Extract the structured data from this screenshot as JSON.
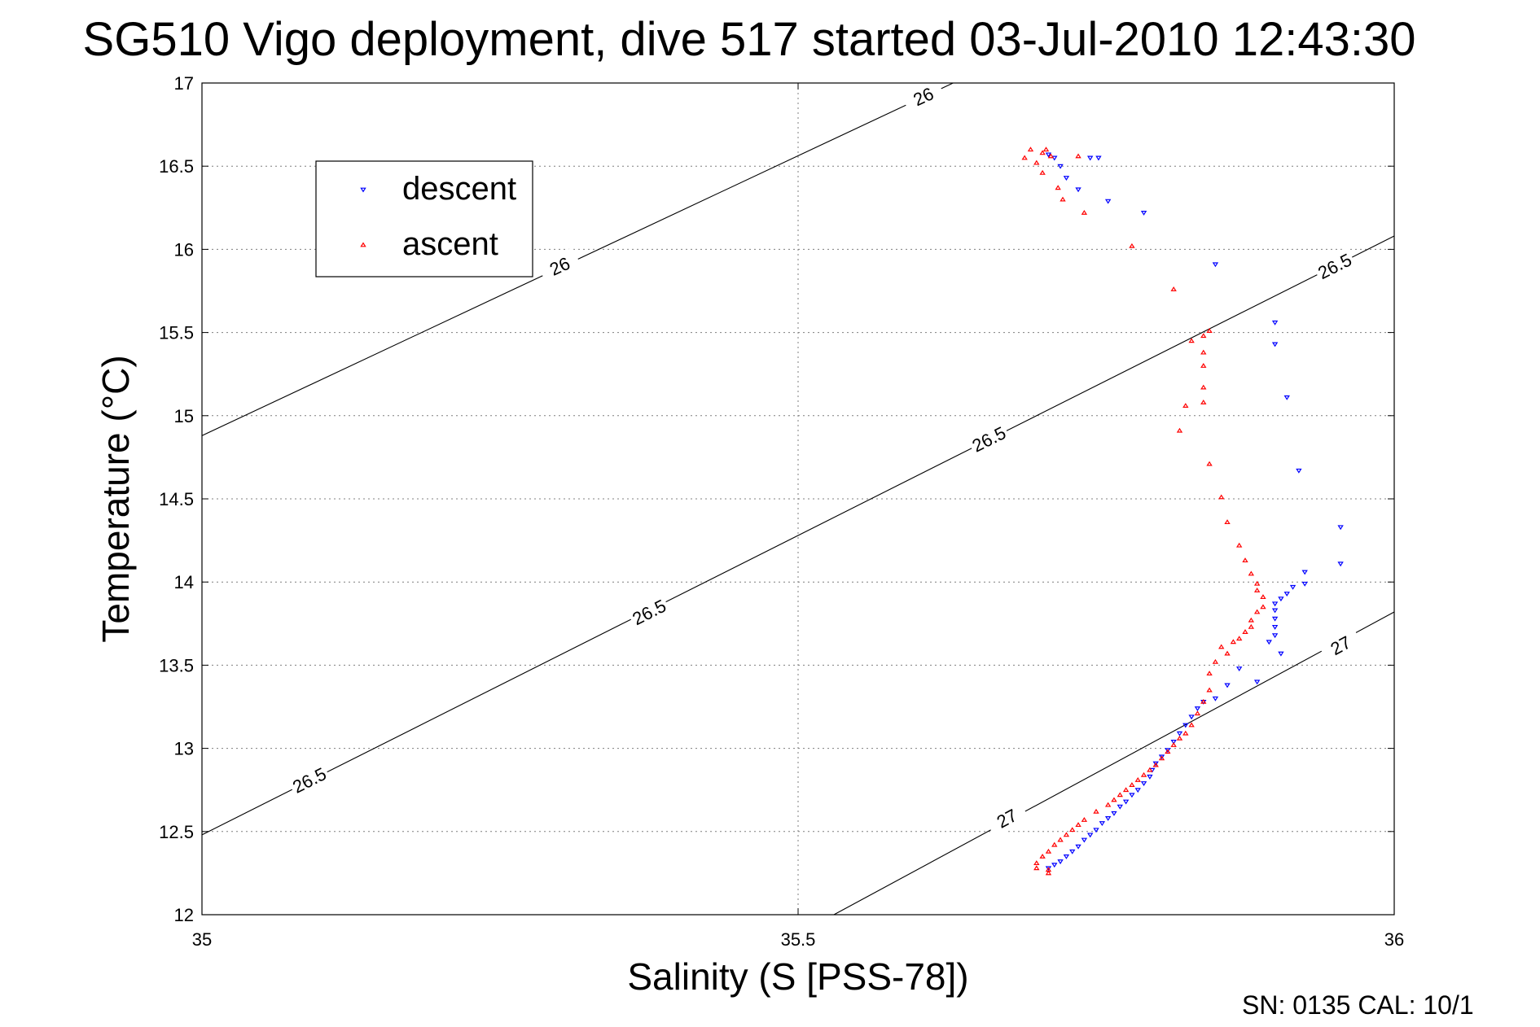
{
  "chart_data": {
    "type": "scatter",
    "title": "SG510 Vigo deployment, dive 517 started 03-Jul-2010 12:43:30",
    "xlabel": "Salinity (S [PSS-78])",
    "ylabel": "Temperature (°C)",
    "xlim": [
      35,
      36
    ],
    "ylim": [
      12,
      17
    ],
    "xticks": [
      "35",
      "35.5",
      "36"
    ],
    "yticks": [
      "12",
      "12.5",
      "13",
      "13.5",
      "14",
      "14.5",
      "15",
      "15.5",
      "16",
      "16.5",
      "17"
    ],
    "grid": true,
    "legend_position": "top-left",
    "footer": "SN: 0135  CAL: 10/1",
    "density_contours": [
      {
        "value": "26",
        "line": [
          [
            35,
            14.88
          ],
          [
            35.63,
            17.0
          ]
        ],
        "labels": [
          {
            "text": "26",
            "x": 35.3,
            "y": 15.9
          },
          {
            "text": "26",
            "x": 35.605,
            "y": 16.92
          }
        ]
      },
      {
        "value": "26.5",
        "line": [
          [
            35,
            12.48
          ],
          [
            36,
            16.08
          ]
        ],
        "labels": [
          {
            "text": "26.5",
            "x": 35.09,
            "y": 12.81
          },
          {
            "text": "26.5",
            "x": 35.375,
            "y": 13.82
          },
          {
            "text": "26.5",
            "x": 35.66,
            "y": 14.86
          },
          {
            "text": "26.5",
            "x": 35.95,
            "y": 15.9
          }
        ]
      },
      {
        "value": "27",
        "line": [
          [
            35.53,
            12.0
          ],
          [
            36,
            13.82
          ]
        ],
        "labels": [
          {
            "text": "27",
            "x": 35.675,
            "y": 12.58
          },
          {
            "text": "27",
            "x": 35.955,
            "y": 13.62
          }
        ]
      }
    ],
    "series": [
      {
        "name": "descent",
        "color": "#0000ff",
        "marker": "triangle-down",
        "points": [
          [
            35.71,
            16.57
          ],
          [
            35.715,
            16.55
          ],
          [
            35.72,
            16.5
          ],
          [
            35.725,
            16.43
          ],
          [
            35.735,
            16.36
          ],
          [
            35.745,
            16.55
          ],
          [
            35.752,
            16.55
          ],
          [
            35.76,
            16.29
          ],
          [
            35.79,
            16.22
          ],
          [
            35.85,
            15.91
          ],
          [
            35.9,
            15.56
          ],
          [
            35.9,
            15.43
          ],
          [
            35.91,
            15.11
          ],
          [
            35.92,
            14.67
          ],
          [
            35.955,
            14.33
          ],
          [
            35.955,
            14.11
          ],
          [
            35.925,
            14.06
          ],
          [
            35.925,
            13.99
          ],
          [
            35.915,
            13.97
          ],
          [
            35.91,
            13.93
          ],
          [
            35.905,
            13.9
          ],
          [
            35.9,
            13.87
          ],
          [
            35.9,
            13.83
          ],
          [
            35.9,
            13.78
          ],
          [
            35.9,
            13.73
          ],
          [
            35.9,
            13.68
          ],
          [
            35.895,
            13.64
          ],
          [
            35.905,
            13.57
          ],
          [
            35.87,
            13.48
          ],
          [
            35.885,
            13.4
          ],
          [
            35.86,
            13.38
          ],
          [
            35.85,
            13.3
          ],
          [
            35.84,
            13.28
          ],
          [
            35.835,
            13.24
          ],
          [
            35.83,
            13.19
          ],
          [
            35.825,
            13.14
          ],
          [
            35.82,
            13.09
          ],
          [
            35.815,
            13.04
          ],
          [
            35.81,
            12.99
          ],
          [
            35.805,
            12.95
          ],
          [
            35.8,
            12.91
          ],
          [
            35.797,
            12.87
          ],
          [
            35.795,
            12.83
          ],
          [
            35.79,
            12.79
          ],
          [
            35.785,
            12.75
          ],
          [
            35.78,
            12.72
          ],
          [
            35.775,
            12.68
          ],
          [
            35.77,
            12.65
          ],
          [
            35.765,
            12.61
          ],
          [
            35.76,
            12.58
          ],
          [
            35.755,
            12.55
          ],
          [
            35.75,
            12.51
          ],
          [
            35.745,
            12.48
          ],
          [
            35.74,
            12.45
          ],
          [
            35.735,
            12.41
          ],
          [
            35.73,
            12.38
          ],
          [
            35.725,
            12.35
          ],
          [
            35.72,
            12.32
          ],
          [
            35.715,
            12.3
          ],
          [
            35.71,
            12.28
          ]
        ]
      },
      {
        "name": "ascent",
        "color": "#ff0000",
        "marker": "triangle-up",
        "points": [
          [
            35.69,
            16.55
          ],
          [
            35.695,
            16.6
          ],
          [
            35.7,
            16.52
          ],
          [
            35.705,
            16.46
          ],
          [
            35.705,
            16.58
          ],
          [
            35.708,
            16.6
          ],
          [
            35.712,
            16.56
          ],
          [
            35.718,
            16.37
          ],
          [
            35.722,
            16.3
          ],
          [
            35.735,
            16.56
          ],
          [
            35.74,
            16.22
          ],
          [
            35.78,
            16.02
          ],
          [
            35.815,
            15.76
          ],
          [
            35.83,
            15.45
          ],
          [
            35.84,
            15.48
          ],
          [
            35.845,
            15.51
          ],
          [
            35.84,
            15.38
          ],
          [
            35.84,
            15.3
          ],
          [
            35.84,
            15.17
          ],
          [
            35.825,
            15.06
          ],
          [
            35.84,
            15.08
          ],
          [
            35.82,
            14.91
          ],
          [
            35.845,
            14.71
          ],
          [
            35.855,
            14.51
          ],
          [
            35.86,
            14.36
          ],
          [
            35.87,
            14.22
          ],
          [
            35.875,
            14.13
          ],
          [
            35.88,
            14.05
          ],
          [
            35.885,
            13.99
          ],
          [
            35.885,
            13.95
          ],
          [
            35.89,
            13.91
          ],
          [
            35.89,
            13.85
          ],
          [
            35.885,
            13.82
          ],
          [
            35.88,
            13.77
          ],
          [
            35.88,
            13.73
          ],
          [
            35.875,
            13.7
          ],
          [
            35.87,
            13.66
          ],
          [
            35.865,
            13.64
          ],
          [
            35.855,
            13.61
          ],
          [
            35.86,
            13.57
          ],
          [
            35.85,
            13.52
          ],
          [
            35.845,
            13.45
          ],
          [
            35.845,
            13.35
          ],
          [
            35.84,
            13.28
          ],
          [
            35.835,
            13.21
          ],
          [
            35.83,
            13.14
          ],
          [
            35.825,
            13.09
          ],
          [
            35.82,
            13.06
          ],
          [
            35.815,
            13.02
          ],
          [
            35.81,
            12.98
          ],
          [
            35.805,
            12.94
          ],
          [
            35.8,
            12.9
          ],
          [
            35.795,
            12.87
          ],
          [
            35.79,
            12.84
          ],
          [
            35.785,
            12.81
          ],
          [
            35.78,
            12.78
          ],
          [
            35.775,
            12.75
          ],
          [
            35.77,
            12.72
          ],
          [
            35.765,
            12.69
          ],
          [
            35.76,
            12.66
          ],
          [
            35.75,
            12.62
          ],
          [
            35.74,
            12.57
          ],
          [
            35.735,
            12.54
          ],
          [
            35.73,
            12.51
          ],
          [
            35.725,
            12.48
          ],
          [
            35.72,
            12.45
          ],
          [
            35.715,
            12.42
          ],
          [
            35.71,
            12.38
          ],
          [
            35.705,
            12.35
          ],
          [
            35.7,
            12.31
          ],
          [
            35.7,
            12.28
          ],
          [
            35.71,
            12.27
          ],
          [
            35.71,
            12.25
          ]
        ]
      }
    ]
  }
}
